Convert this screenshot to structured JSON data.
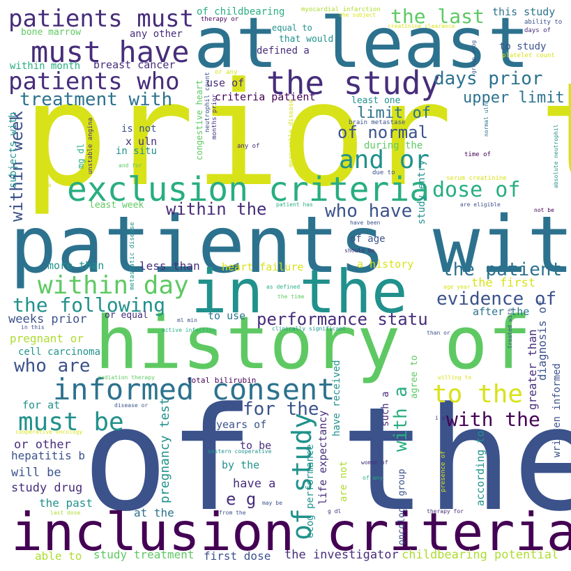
{
  "palette": {
    "dark_purple": "#440154",
    "indigo": "#472d7b",
    "navy": "#3b528b",
    "blue_teal": "#2c728e",
    "teal": "#21918c",
    "green_teal": "#28ae80",
    "green": "#5ec962",
    "yellow_green": "#addc30",
    "yellow": "#d8e219"
  },
  "words": [
    {
      "text": "prior to"
    },
    {
      "text": "of the"
    },
    {
      "text": "patients with"
    },
    {
      "text": "at least"
    },
    {
      "text": "history of"
    },
    {
      "text": "inclusion criteria"
    },
    {
      "text": "in the"
    },
    {
      "text": "exclusion criteria"
    },
    {
      "text": "the study"
    },
    {
      "text": "informed consent"
    },
    {
      "text": "must have"
    },
    {
      "text": "patients who"
    },
    {
      "text": "patients must"
    },
    {
      "text": "must be"
    },
    {
      "text": "within day"
    },
    {
      "text": "and or"
    },
    {
      "text": "of study"
    },
    {
      "text": "the following"
    },
    {
      "text": "to the"
    },
    {
      "text": "dose of"
    },
    {
      "text": "the last"
    },
    {
      "text": "days prior"
    },
    {
      "text": "treatment with"
    },
    {
      "text": "within the"
    },
    {
      "text": "who have"
    },
    {
      "text": "performance statu"
    },
    {
      "text": "with the"
    },
    {
      "text": "the patient"
    },
    {
      "text": "evidence of"
    },
    {
      "text": "within week"
    },
    {
      "text": "with a"
    },
    {
      "text": "for the"
    },
    {
      "text": "of normal"
    },
    {
      "text": "limit of"
    },
    {
      "text": "upper limit"
    },
    {
      "text": "who are"
    },
    {
      "text": "e g"
    },
    {
      "text": "pregnancy test"
    },
    {
      "text": "the investigator"
    },
    {
      "text": "childbearing potential"
    },
    {
      "text": "study treatment"
    },
    {
      "text": "first dose"
    },
    {
      "text": "able to"
    },
    {
      "text": "at the"
    },
    {
      "text": "have a"
    },
    {
      "text": "by the"
    },
    {
      "text": "to be"
    },
    {
      "text": "years of"
    },
    {
      "text": "or other"
    },
    {
      "text": "hepatitis b"
    },
    {
      "text": "will be"
    },
    {
      "text": "study drug"
    },
    {
      "text": "the past"
    },
    {
      "text": "weeks prior"
    },
    {
      "text": "pregnant or"
    },
    {
      "text": "cell carcinoma"
    },
    {
      "text": "for at"
    },
    {
      "text": "more than"
    },
    {
      "text": "less than"
    },
    {
      "text": "heart failure"
    },
    {
      "text": "a history"
    },
    {
      "text": "the first"
    },
    {
      "text": "after the"
    },
    {
      "text": "to use"
    },
    {
      "text": "or equal"
    },
    {
      "text": "of age"
    },
    {
      "text": "least week"
    },
    {
      "text": "use of"
    },
    {
      "text": "criteria patient"
    },
    {
      "text": "is not"
    },
    {
      "text": "x uln"
    },
    {
      "text": "in situ"
    },
    {
      "text": "defined a"
    },
    {
      "text": "breast cancer"
    },
    {
      "text": "within month"
    },
    {
      "text": "bone marrow"
    },
    {
      "text": "any other"
    },
    {
      "text": "of childbearing"
    },
    {
      "text": "equal to"
    },
    {
      "text": "that would"
    },
    {
      "text": "this study"
    },
    {
      "text": "to study"
    },
    {
      "text": "least one"
    },
    {
      "text": "during the"
    },
    {
      "text": "myocardial infarction"
    },
    {
      "text": "the subject"
    },
    {
      "text": "therapy or"
    },
    {
      "text": "creatinine clearance"
    },
    {
      "text": "ability to"
    },
    {
      "text": "days of"
    },
    {
      "text": "platelet count"
    },
    {
      "text": "brain metastase"
    },
    {
      "text": "serum creatinine"
    },
    {
      "text": "due to"
    },
    {
      "text": "time of"
    },
    {
      "text": "any of"
    },
    {
      "text": "or any"
    },
    {
      "text": "and for"
    },
    {
      "text": "of a"
    },
    {
      "text": "patient has"
    },
    {
      "text": "have been"
    },
    {
      "text": "should be"
    },
    {
      "text": "are eligible"
    },
    {
      "text": "not be"
    },
    {
      "text": "as defined"
    },
    {
      "text": "the time"
    },
    {
      "text": "age year"
    },
    {
      "text": "in this"
    },
    {
      "text": "active infection"
    },
    {
      "text": "ml min"
    },
    {
      "text": "clinically significant"
    },
    {
      "text": "than or"
    },
    {
      "text": "radiation therapy"
    },
    {
      "text": "total bilirubin"
    },
    {
      "text": "disease or"
    },
    {
      "text": "willing to"
    },
    {
      "text": "i e"
    },
    {
      "text": "cooperative oncology"
    },
    {
      "text": "eastern cooperative"
    },
    {
      "text": "women of"
    },
    {
      "text": "of any"
    },
    {
      "text": "last dose"
    },
    {
      "text": "from the"
    },
    {
      "text": "may be"
    },
    {
      "text": "g dl"
    },
    {
      "text": "therapy for"
    },
    {
      "text": "subjects with"
    },
    {
      "text": "mg dl"
    },
    {
      "text": "unstable angina"
    },
    {
      "text": "congestive heart"
    },
    {
      "text": "neutrophil count"
    },
    {
      "text": "months prior"
    },
    {
      "text": "measurable disease"
    },
    {
      "text": "metastatic disease"
    },
    {
      "text": "study entry"
    },
    {
      "text": "group ecog"
    },
    {
      "text": "normal uln"
    },
    {
      "text": "absolute neutrophil"
    },
    {
      "text": "greater than"
    },
    {
      "text": "diagnosis of"
    },
    {
      "text": "written informed"
    },
    {
      "text": "treated with"
    },
    {
      "text": "agree to"
    },
    {
      "text": "such a"
    },
    {
      "text": "according to"
    },
    {
      "text": "oncology group"
    },
    {
      "text": "ecog performance"
    },
    {
      "text": "life expectancy"
    },
    {
      "text": "have received"
    },
    {
      "text": "are not"
    },
    {
      "text": "presence of"
    }
  ]
}
